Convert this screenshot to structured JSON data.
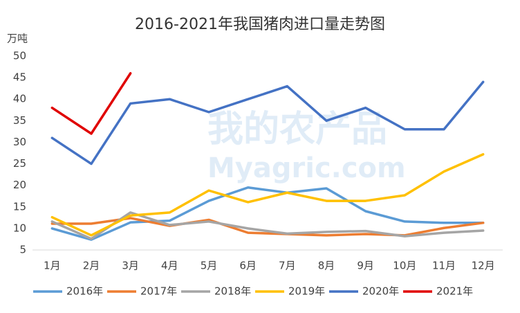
{
  "chart_data": {
    "type": "line",
    "title": "2016-2021年我国猪肉进口量走势图",
    "y_label": "万吨",
    "watermark": [
      "我的农产品",
      "Myagric.com"
    ],
    "categories": [
      "1月",
      "2月",
      "3月",
      "4月",
      "5月",
      "6月",
      "7月",
      "8月",
      "9月",
      "10月",
      "11月",
      "12月"
    ],
    "ylim": [
      5,
      50
    ],
    "yticks": [
      5,
      10,
      15,
      20,
      25,
      30,
      35,
      40,
      45,
      50
    ],
    "grid": false,
    "legend": "bottom",
    "series": [
      {
        "name": "2016年",
        "color": "#5b9bd5",
        "values": [
          10,
          7.4,
          11.4,
          11.8,
          16.4,
          19.5,
          18.3,
          19.3,
          14,
          11.6,
          11.3,
          11.3
        ]
      },
      {
        "name": "2017年",
        "color": "#ed7d31",
        "values": [
          11.1,
          11.1,
          12.4,
          10.6,
          12,
          9,
          8.7,
          8.4,
          8.7,
          8.4,
          10.1,
          11.3
        ]
      },
      {
        "name": "2018年",
        "color": "#a5a5a5",
        "values": [
          11.6,
          7.6,
          13.7,
          10.8,
          11.6,
          10,
          8.8,
          9.2,
          9.4,
          8.2,
          9,
          9.5
        ]
      },
      {
        "name": "2019年",
        "color": "#ffc000",
        "values": [
          12.6,
          8.4,
          13,
          13.7,
          18.8,
          16.1,
          18.3,
          16.4,
          16.4,
          17.7,
          23.2,
          27.2
        ]
      },
      {
        "name": "2020年",
        "color": "#4472c4",
        "values": [
          31,
          25,
          39,
          40,
          37,
          40,
          43,
          35,
          38,
          33,
          33,
          44
        ]
      },
      {
        "name": "2021年",
        "color": "#e00000",
        "values": [
          38,
          32,
          46,
          null,
          null,
          null,
          null,
          null,
          null,
          null,
          null,
          null
        ]
      }
    ]
  }
}
